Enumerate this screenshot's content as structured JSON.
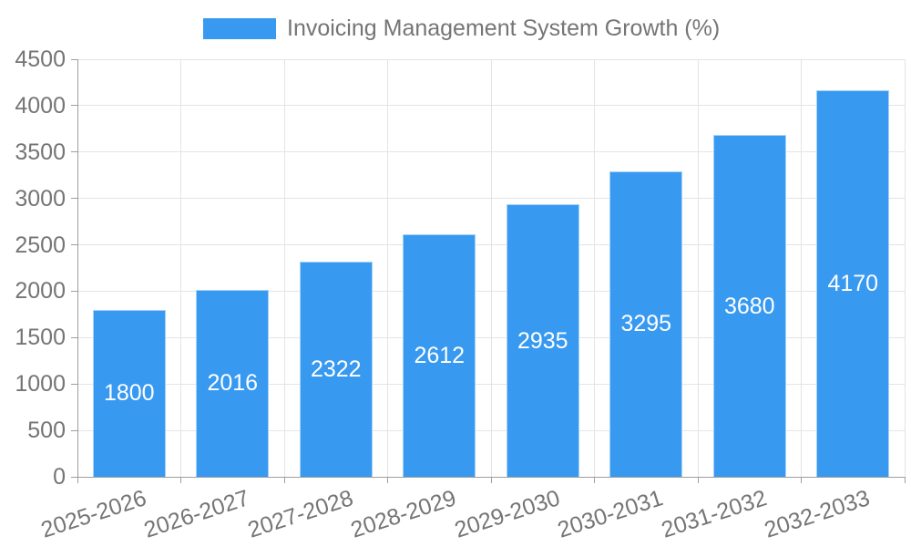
{
  "legend": {
    "label": "Invoicing Management System Growth (%)"
  },
  "chart_data": {
    "type": "bar",
    "title": "Invoicing Management System Growth (%)",
    "categories": [
      "2025-2026",
      "2026-2027",
      "2027-2028",
      "2028-2029",
      "2029-2030",
      "2030-2031",
      "2031-2032",
      "2032-2033"
    ],
    "values": [
      1800,
      2016,
      2322,
      2612,
      2935,
      3295,
      3680,
      4170
    ],
    "xlabel": "",
    "ylabel": "",
    "ylim": [
      0,
      4500
    ],
    "ytick_step": 500,
    "yticks": [
      0,
      500,
      1000,
      1500,
      2000,
      2500,
      3000,
      3500,
      4000,
      4500
    ],
    "grid": true,
    "legend_position": "top-center",
    "bar_labels": "inside-center",
    "x_label_rotation_deg": -18
  },
  "colors": {
    "bar": "#3899F0",
    "axis": "#9E9E9E",
    "grid": "#E4E4E4",
    "text": "#757575",
    "bar_label": "#FFFFFF",
    "background": "#FFFFFF"
  }
}
